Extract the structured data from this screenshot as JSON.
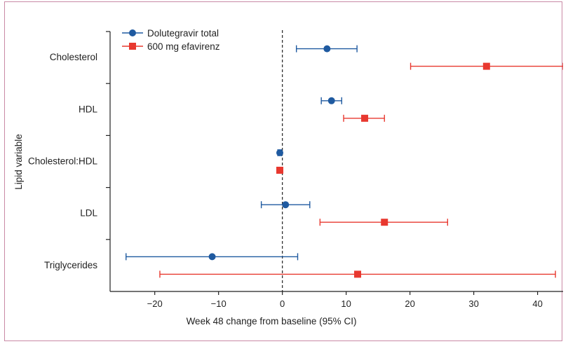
{
  "chart_data": {
    "type": "forest",
    "xlabel": "Week 48 change from baseline (95% CI)",
    "ylabel": "Lipid variable",
    "xlim": [
      -27,
      44
    ],
    "xticks": [
      -20,
      -10,
      0,
      10,
      20,
      30,
      40
    ],
    "xtick_labels": [
      "−20",
      "−10",
      "0",
      "10",
      "20",
      "30",
      "40"
    ],
    "reference_line": 0,
    "legend_position": "top-left",
    "categories": [
      "Cholesterol",
      "HDL",
      "Cholesterol:HDL",
      "LDL",
      "Triglycerides"
    ],
    "series": [
      {
        "name": "Dolutegravir total",
        "color": "#1f5aa0",
        "marker": "circle",
        "points": [
          {
            "category": "Cholesterol",
            "estimate": 7,
            "lower": 2.2,
            "upper": 11.7
          },
          {
            "category": "HDL",
            "estimate": 7.7,
            "lower": 6.1,
            "upper": 9.3
          },
          {
            "category": "Cholesterol:HDL",
            "estimate": -0.4,
            "lower": -0.7,
            "upper": -0.1
          },
          {
            "category": "LDL",
            "estimate": 0.5,
            "lower": -3.3,
            "upper": 4.3
          },
          {
            "category": "Triglycerides",
            "estimate": -11,
            "lower": -24.5,
            "upper": 2.4
          }
        ]
      },
      {
        "name": "600 mg efavirenz",
        "color": "#e8382f",
        "marker": "square",
        "points": [
          {
            "category": "Cholesterol",
            "estimate": 32,
            "lower": 20.1,
            "upper": 44
          },
          {
            "category": "HDL",
            "estimate": 12.9,
            "lower": 9.6,
            "upper": 16
          },
          {
            "category": "Cholesterol:HDL",
            "estimate": -0.4,
            "lower": -0.7,
            "upper": -0.1
          },
          {
            "category": "LDL",
            "estimate": 16,
            "lower": 5.9,
            "upper": 25.9
          },
          {
            "category": "Triglycerides",
            "estimate": 11.8,
            "lower": -19.2,
            "upper": 42.8
          }
        ]
      }
    ]
  }
}
